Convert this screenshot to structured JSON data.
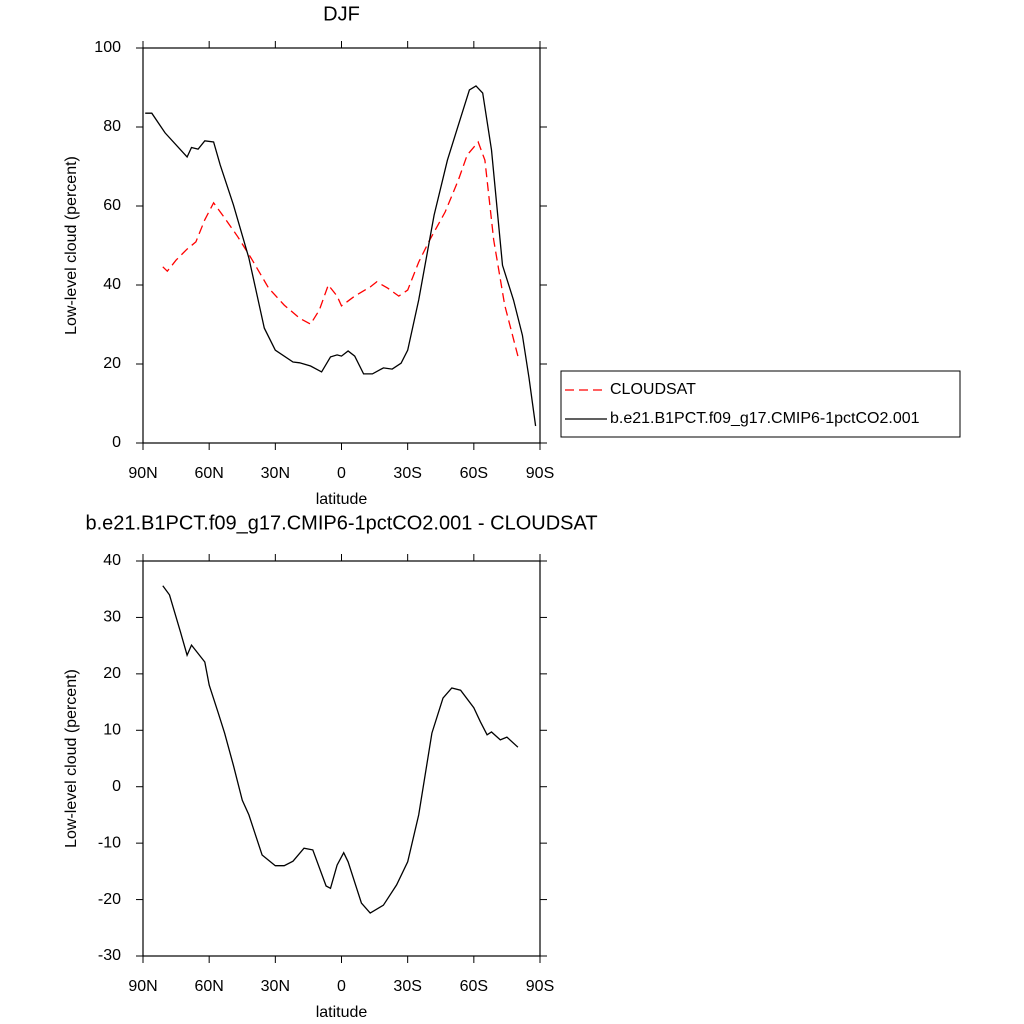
{
  "chart_data": [
    {
      "type": "line",
      "title": "DJF",
      "xlabel": "latitude",
      "ylabel": "Low-level cloud (percent)",
      "xlim": [
        90,
        -90
      ],
      "xticks": [
        {
          "value": 90,
          "label": "90N"
        },
        {
          "value": 60,
          "label": "60N"
        },
        {
          "value": 30,
          "label": "30N"
        },
        0,
        {
          "value": -30,
          "label": "30S"
        },
        {
          "value": -60,
          "label": "60S"
        },
        {
          "value": -90,
          "label": "90S"
        }
      ],
      "ylim": [
        0,
        100
      ],
      "yticks": [
        0,
        20,
        40,
        60,
        80,
        100
      ],
      "legend": "right",
      "series": [
        {
          "name": "CLOUDSAT",
          "color": "#ff0000",
          "line_style": "dashed",
          "x": [
            81,
            79,
            75,
            70,
            66,
            62,
            58,
            53,
            47,
            41,
            33,
            26,
            19,
            14,
            10,
            6,
            2,
            0,
            -6,
            -13,
            -16,
            -21,
            -26,
            -30,
            -35,
            -40,
            -47,
            -53,
            -57,
            -62,
            -65,
            -69,
            -74,
            -80
          ],
          "values": [
            44.6,
            43.5,
            46.3,
            49.1,
            50.9,
            56.5,
            60.8,
            57,
            52.2,
            46.8,
            39.2,
            34.9,
            31.6,
            30.1,
            33.7,
            40,
            37.2,
            34.7,
            37.2,
            39.5,
            40.8,
            39.2,
            37.2,
            38.7,
            45.8,
            51.4,
            58.5,
            66.6,
            72.9,
            76.2,
            71.6,
            51.4,
            34.9,
            22
          ]
        },
        {
          "name": "b.e21.B1PCT.f09_g17.CMIP6-1pctCO2.001",
          "color": "#000000",
          "line_style": "solid",
          "x": [
            89,
            86,
            80,
            70,
            68,
            65,
            62,
            58,
            55,
            49,
            42,
            35,
            30,
            22,
            19,
            14,
            9,
            5,
            2,
            0,
            -3,
            -6,
            -10,
            -14,
            -19,
            -23,
            -27,
            -30,
            -35,
            -42,
            -48,
            -54,
            -58,
            -61,
            -64,
            -68,
            -73,
            -78,
            -82,
            -85,
            -88
          ],
          "values": [
            83.5,
            83.5,
            78.5,
            72.4,
            74.8,
            74.4,
            76.5,
            76.2,
            70.4,
            60.3,
            46.8,
            29.1,
            23.5,
            20.5,
            20.3,
            19.5,
            18,
            21.8,
            22.3,
            22,
            23.3,
            22,
            17.5,
            17.5,
            19,
            18.7,
            20.2,
            23.5,
            36.2,
            57.7,
            71.6,
            82.3,
            89.4,
            90.4,
            88.6,
            74.2,
            45,
            36.2,
            27.3,
            16.5,
            4.3
          ]
        }
      ]
    },
    {
      "type": "line",
      "title": "b.e21.B1PCT.f09_g17.CMIP6-1pctCO2.001 - CLOUDSAT",
      "xlabel": "latitude",
      "ylabel": "Low-level cloud (percent)",
      "xlim": [
        90,
        -90
      ],
      "xticks": [
        {
          "value": 90,
          "label": "90N"
        },
        {
          "value": 60,
          "label": "60N"
        },
        {
          "value": 30,
          "label": "30N"
        },
        0,
        {
          "value": -30,
          "label": "30S"
        },
        {
          "value": -60,
          "label": "60S"
        },
        {
          "value": -90,
          "label": "90S"
        }
      ],
      "ylim": [
        -30,
        40
      ],
      "yticks": [
        -30,
        -20,
        -10,
        0,
        10,
        20,
        30,
        40
      ],
      "series": [
        {
          "color": "#000000",
          "line_style": "solid",
          "x": [
            81,
            78,
            73,
            70,
            68,
            62,
            60,
            56,
            53,
            49,
            45,
            42,
            36,
            30,
            26,
            22,
            17,
            13,
            7,
            5,
            2,
            -1,
            -3,
            -9,
            -13,
            -19,
            -25,
            -30,
            -35,
            -41,
            -46,
            -50,
            -54,
            -60,
            -63,
            -66,
            -68,
            -72,
            -75,
            -80
          ],
          "values": [
            35.6,
            34,
            27.4,
            23.3,
            25.1,
            22.1,
            18,
            13.2,
            9.5,
            3.8,
            -2.4,
            -5,
            -12.1,
            -14,
            -14,
            -13.2,
            -10.9,
            -11.2,
            -17.6,
            -18,
            -13.9,
            -11.7,
            -13.3,
            -20.6,
            -22.4,
            -21,
            -17.4,
            -13.3,
            -5,
            9.5,
            15.7,
            17.5,
            17.1,
            14,
            11.5,
            9.2,
            9.7,
            8.3,
            8.8,
            7
          ]
        }
      ]
    }
  ]
}
